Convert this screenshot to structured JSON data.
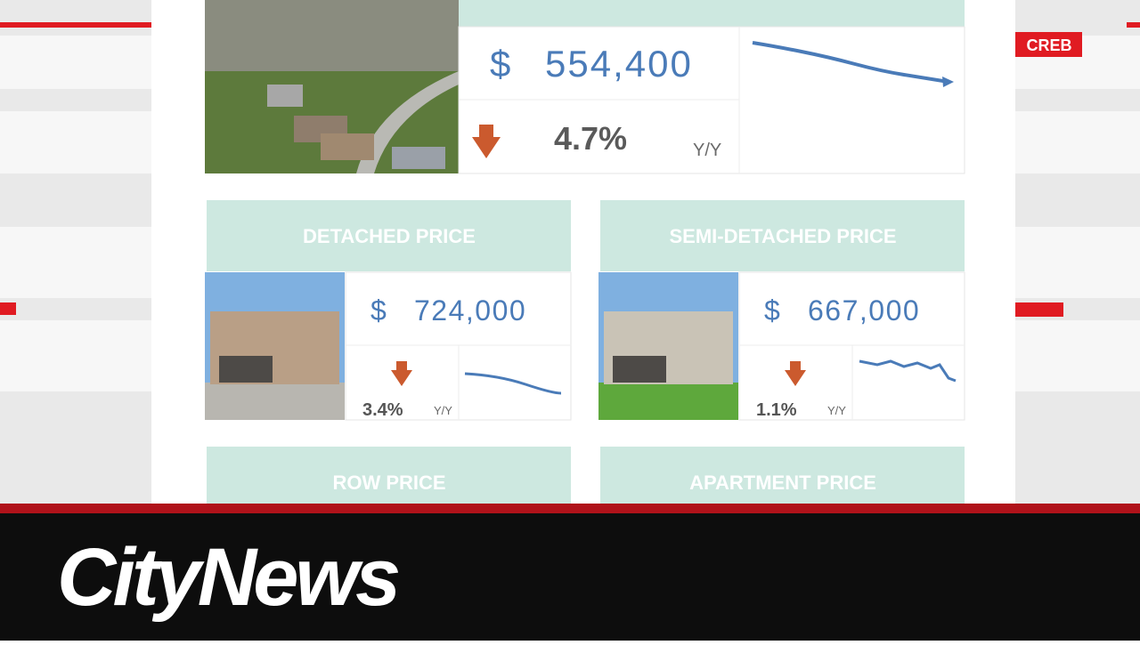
{
  "badge": "CREB",
  "benchmark": {
    "currency": "$",
    "price": "554,400",
    "change": "4.7%",
    "period": "Y/Y"
  },
  "cards": [
    {
      "title": "DETACHED PRICE",
      "currency": "$",
      "price": "724,000",
      "change": "3.4%",
      "period": "Y/Y"
    },
    {
      "title": "SEMI-DETACHED PRICE",
      "currency": "$",
      "price": "667,000",
      "change": "1.1%",
      "period": "Y/Y"
    },
    {
      "title": "ROW PRICE"
    },
    {
      "title": "APARTMENT PRICE"
    }
  ],
  "logo": "CityNews"
}
